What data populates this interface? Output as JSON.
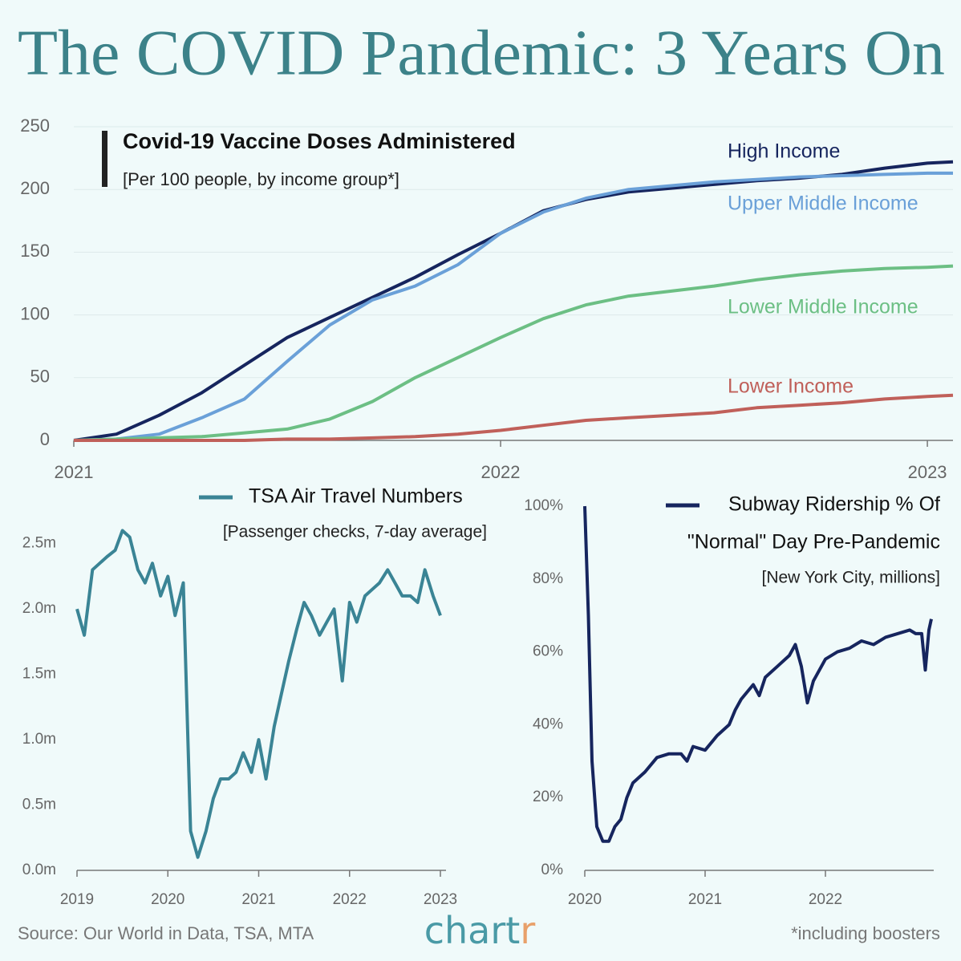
{
  "title": "The COVID Pandemic: 3 Years On",
  "chart_data": [
    {
      "type": "line",
      "title": "Covid-19 Vaccine Doses Administered",
      "subtitle": "[Per 100 people, by income group*]",
      "x": [
        2021,
        2021.1,
        2021.2,
        2021.3,
        2021.4,
        2021.5,
        2021.6,
        2021.7,
        2021.8,
        2021.9,
        2022,
        2022.1,
        2022.2,
        2022.3,
        2022.4,
        2022.5,
        2022.6,
        2022.7,
        2022.8,
        2022.9,
        2023,
        2023.06
      ],
      "series": [
        {
          "name": "High Income",
          "color": "#16255e",
          "values": [
            0,
            5,
            20,
            38,
            60,
            82,
            98,
            114,
            130,
            148,
            165,
            183,
            192,
            198,
            201,
            204,
            207,
            209,
            212,
            217,
            221,
            222
          ]
        },
        {
          "name": "Upper Middle Income",
          "color": "#6aa0d8",
          "values": [
            0,
            1,
            5,
            18,
            33,
            63,
            92,
            112,
            123,
            140,
            165,
            182,
            193,
            200,
            203,
            206,
            208,
            210,
            211,
            212,
            213,
            213
          ]
        },
        {
          "name": "Lower Middle Income",
          "color": "#6cbf84",
          "values": [
            0,
            1,
            2,
            3,
            6,
            9,
            17,
            31,
            50,
            66,
            82,
            97,
            108,
            115,
            119,
            123,
            128,
            132,
            135,
            137,
            138,
            139
          ]
        },
        {
          "name": "Lower Income",
          "color": "#c0605a",
          "values": [
            0,
            0,
            0,
            0,
            0,
            1,
            1,
            2,
            3,
            5,
            8,
            12,
            16,
            18,
            20,
            22,
            26,
            28,
            30,
            33,
            35,
            36
          ]
        }
      ],
      "xlim": [
        2021,
        2023.06
      ],
      "xticks": [
        2021,
        2022,
        2023
      ],
      "ylim": [
        0,
        250
      ],
      "yticks": [
        0,
        50,
        100,
        150,
        200,
        250
      ],
      "grid": true
    },
    {
      "type": "line",
      "title": "TSA Air Travel Numbers",
      "subtitle": "[Passenger checks, 7-day average]",
      "x": [
        2019,
        2019.08,
        2019.17,
        2019.25,
        2019.33,
        2019.42,
        2019.5,
        2019.58,
        2019.67,
        2019.75,
        2019.83,
        2019.92,
        2020,
        2020.08,
        2020.17,
        2020.25,
        2020.33,
        2020.42,
        2020.5,
        2020.58,
        2020.67,
        2020.75,
        2020.83,
        2020.92,
        2021,
        2021.08,
        2021.17,
        2021.25,
        2021.33,
        2021.42,
        2021.5,
        2021.58,
        2021.67,
        2021.75,
        2021.83,
        2021.92,
        2022,
        2022.08,
        2022.17,
        2022.25,
        2022.33,
        2022.42,
        2022.5,
        2022.58,
        2022.67,
        2022.75,
        2022.83,
        2022.92,
        2023
      ],
      "series": [
        {
          "color": "#3a8495",
          "values": [
            2.0,
            1.8,
            2.3,
            2.35,
            2.4,
            2.45,
            2.6,
            2.55,
            2.3,
            2.2,
            2.35,
            2.1,
            2.25,
            1.95,
            2.2,
            0.3,
            0.1,
            0.3,
            0.55,
            0.7,
            0.7,
            0.75,
            0.9,
            0.75,
            1.0,
            0.7,
            1.1,
            1.35,
            1.6,
            1.85,
            2.05,
            1.95,
            1.8,
            1.9,
            2.0,
            1.45,
            2.05,
            1.9,
            2.1,
            2.15,
            2.2,
            2.3,
            2.2,
            2.1,
            2.1,
            2.05,
            2.3,
            2.1,
            1.95
          ]
        }
      ],
      "xlim": [
        2019,
        2023
      ],
      "xticks": [
        2019,
        2020,
        2021,
        2022,
        2023
      ],
      "ylim": [
        0,
        2.75
      ],
      "yticks": [
        {
          "value": 0,
          "label": "0.0m"
        },
        {
          "value": 0.5,
          "label": "0.5m"
        },
        {
          "value": 1,
          "label": "1.0m"
        },
        {
          "value": 1.5,
          "label": "1.5m"
        },
        {
          "value": 2,
          "label": "2.0m"
        },
        {
          "value": 2.5,
          "label": "2.5m"
        }
      ],
      "grid": false
    },
    {
      "type": "line",
      "title": [
        "Subway Ridership % Of",
        "\"Normal\" Day Pre-Pandemic"
      ],
      "subtitle": "[New York City, millions]",
      "x": [
        2020,
        2020.03,
        2020.06,
        2020.1,
        2020.15,
        2020.2,
        2020.25,
        2020.3,
        2020.35,
        2020.4,
        2020.5,
        2020.6,
        2020.7,
        2020.8,
        2020.85,
        2020.9,
        2021,
        2021.1,
        2021.2,
        2021.25,
        2021.3,
        2021.4,
        2021.45,
        2021.5,
        2021.6,
        2021.7,
        2021.75,
        2021.8,
        2021.85,
        2021.9,
        2022,
        2022.1,
        2022.2,
        2022.3,
        2022.4,
        2022.5,
        2022.6,
        2022.7,
        2022.75,
        2022.8,
        2022.83,
        2022.86,
        2022.88
      ],
      "series": [
        {
          "color": "#16255e",
          "values": [
            100,
            70,
            30,
            12,
            8,
            8,
            12,
            14,
            20,
            24,
            27,
            31,
            32,
            32,
            30,
            34,
            33,
            37,
            40,
            44,
            47,
            51,
            48,
            53,
            56,
            59,
            62,
            56,
            46,
            52,
            58,
            60,
            61,
            63,
            62,
            64,
            65,
            66,
            65,
            65,
            55,
            66,
            69
          ]
        }
      ],
      "xlim": [
        2020,
        2022.9
      ],
      "xticks": [
        2020,
        2021,
        2022
      ],
      "ylim": [
        0,
        100
      ],
      "yticks": [
        {
          "value": 0,
          "label": "0%"
        },
        {
          "value": 20,
          "label": "20%"
        },
        {
          "value": 40,
          "label": "40%"
        },
        {
          "value": 60,
          "label": "60%"
        },
        {
          "value": 80,
          "label": "80%"
        },
        {
          "value": 100,
          "label": "100%"
        }
      ],
      "grid": false
    }
  ],
  "footer": {
    "source": "Source: Our World in Data, TSA, MTA",
    "logo": [
      "chart",
      "r"
    ],
    "note": "*including boosters"
  }
}
